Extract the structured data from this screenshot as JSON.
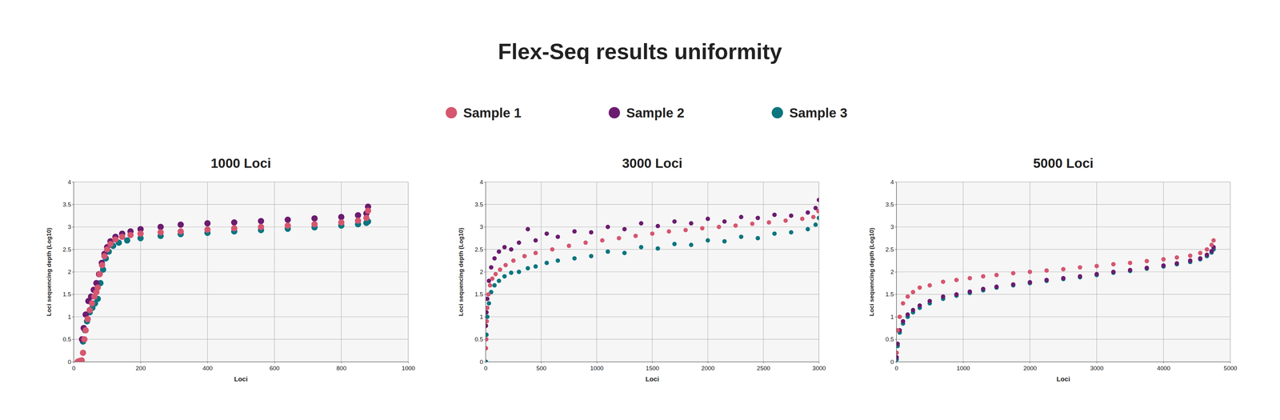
{
  "title": "Flex-Seq results uniformity",
  "chart_data": [
    {
      "type": "scatter",
      "title": "1000 Loci",
      "x_label": "Loci",
      "y_label": "Loci sequencing depth (Log10)",
      "xlim": [
        0,
        1000
      ],
      "ylim": [
        0,
        4
      ],
      "xticks": [
        0,
        200,
        400,
        600,
        800,
        1000
      ],
      "yticks": [
        0,
        0.5,
        1,
        1.5,
        2,
        2.5,
        3,
        3.5,
        4
      ],
      "grid": true,
      "marker": "circle",
      "series": [
        {
          "name": "Sample 1",
          "color": "#d6566f",
          "x": [
            12,
            18,
            24,
            28,
            32,
            36,
            42,
            48,
            55,
            62,
            68,
            72,
            78,
            85,
            92,
            100,
            110,
            125,
            145,
            170,
            200,
            260,
            320,
            400,
            480,
            560,
            640,
            720,
            800,
            850,
            875,
            880
          ],
          "values": [
            0,
            0.02,
            0.03,
            0.2,
            0.5,
            0.7,
            0.95,
            1.15,
            1.3,
            1.45,
            1.55,
            1.65,
            1.95,
            2.15,
            2.35,
            2.5,
            2.62,
            2.72,
            2.78,
            2.82,
            2.85,
            2.88,
            2.9,
            2.94,
            2.97,
            3.0,
            3.03,
            3.06,
            3.1,
            3.14,
            3.2,
            3.36
          ]
        },
        {
          "name": "Sample 2",
          "color": "#6b1c6f",
          "x": [
            25,
            30,
            36,
            44,
            52,
            60,
            68,
            76,
            84,
            92,
            100,
            110,
            125,
            145,
            170,
            200,
            260,
            320,
            400,
            480,
            560,
            640,
            720,
            800,
            850,
            875,
            880
          ],
          "values": [
            0.5,
            0.75,
            1.05,
            1.35,
            1.45,
            1.6,
            1.75,
            1.95,
            2.2,
            2.4,
            2.55,
            2.68,
            2.78,
            2.85,
            2.9,
            2.95,
            3.0,
            3.05,
            3.08,
            3.1,
            3.13,
            3.16,
            3.19,
            3.22,
            3.26,
            3.3,
            3.45
          ]
        },
        {
          "name": "Sample 3",
          "color": "#0b7580",
          "x": [
            28,
            34,
            40,
            48,
            56,
            64,
            72,
            80,
            88,
            96,
            105,
            118,
            135,
            160,
            200,
            260,
            320,
            400,
            480,
            560,
            640,
            720,
            800,
            850,
            875,
            880
          ],
          "values": [
            0.45,
            0.7,
            0.9,
            1.1,
            1.2,
            1.3,
            1.4,
            1.75,
            2.05,
            2.3,
            2.45,
            2.58,
            2.65,
            2.7,
            2.75,
            2.8,
            2.84,
            2.87,
            2.9,
            2.93,
            2.96,
            2.99,
            3.03,
            3.06,
            3.09,
            3.12
          ]
        }
      ]
    },
    {
      "type": "scatter",
      "title": "3000 Loci",
      "x_label": "Loci",
      "y_label": "Loci sequencing depth (Log10)",
      "xlim": [
        0,
        3000
      ],
      "ylim": [
        0,
        4
      ],
      "xticks": [
        0,
        500,
        1000,
        1500,
        2000,
        2500,
        3000
      ],
      "yticks": [
        0,
        0.5,
        1,
        1.5,
        2,
        2.5,
        3,
        3.5,
        4
      ],
      "grid": true,
      "marker": "circle",
      "series": [
        {
          "name": "Sample 1",
          "color": "#d6566f",
          "x": [
            3,
            6,
            10,
            15,
            25,
            40,
            60,
            90,
            130,
            180,
            250,
            350,
            450,
            600,
            750,
            900,
            1050,
            1200,
            1350,
            1500,
            1650,
            1800,
            1950,
            2100,
            2250,
            2400,
            2550,
            2700,
            2850,
            2950,
            2995
          ],
          "values": [
            0.3,
            0.5,
            0.9,
            1.2,
            1.5,
            1.7,
            1.85,
            1.95,
            2.05,
            2.15,
            2.25,
            2.35,
            2.42,
            2.5,
            2.58,
            2.65,
            2.7,
            2.75,
            2.8,
            2.85,
            2.9,
            2.93,
            2.97,
            3.0,
            3.03,
            3.07,
            3.1,
            3.14,
            3.18,
            3.22,
            3.35
          ]
        },
        {
          "name": "Sample 2",
          "color": "#6b1c6f",
          "x": [
            3,
            8,
            15,
            30,
            50,
            80,
            120,
            170,
            230,
            300,
            380,
            450,
            550,
            650,
            800,
            950,
            1100,
            1250,
            1400,
            1550,
            1700,
            1850,
            2000,
            2150,
            2300,
            2450,
            2600,
            2750,
            2900,
            2970,
            3000
          ],
          "values": [
            0.8,
            1.1,
            1.4,
            1.8,
            2.1,
            2.3,
            2.45,
            2.55,
            2.5,
            2.65,
            2.95,
            2.7,
            2.85,
            2.78,
            2.9,
            2.88,
            3.0,
            2.95,
            3.08,
            3.02,
            3.12,
            3.08,
            3.18,
            3.12,
            3.22,
            3.2,
            3.27,
            3.25,
            3.32,
            3.42,
            3.6
          ]
        },
        {
          "name": "Sample 3",
          "color": "#0b7580",
          "x": [
            3,
            8,
            15,
            30,
            50,
            80,
            120,
            170,
            230,
            300,
            380,
            450,
            550,
            650,
            800,
            950,
            1100,
            1250,
            1400,
            1550,
            1700,
            1850,
            2000,
            2150,
            2300,
            2450,
            2600,
            2750,
            2900,
            2970,
            3000
          ],
          "values": [
            0,
            0.6,
            1.0,
            1.3,
            1.55,
            1.7,
            1.8,
            1.9,
            1.98,
            2.0,
            2.08,
            2.12,
            2.2,
            2.25,
            2.3,
            2.35,
            2.45,
            2.42,
            2.55,
            2.52,
            2.62,
            2.6,
            2.7,
            2.68,
            2.78,
            2.75,
            2.85,
            2.88,
            2.95,
            3.05,
            3.2
          ]
        }
      ]
    },
    {
      "type": "scatter",
      "title": "5000 Loci",
      "x_label": "Loci",
      "y_label": "Loci sequencing depth (Log10)",
      "xlim": [
        0,
        5000
      ],
      "ylim": [
        0,
        4
      ],
      "xticks": [
        0,
        1000,
        2000,
        3000,
        4000,
        5000
      ],
      "yticks": [
        0,
        0.5,
        1,
        1.5,
        2,
        2.5,
        3,
        3.5,
        4
      ],
      "grid": true,
      "marker": "circle",
      "series": [
        {
          "name": "Sample 1",
          "color": "#d6566f",
          "x": [
            5,
            20,
            50,
            100,
            170,
            250,
            350,
            500,
            700,
            900,
            1100,
            1300,
            1500,
            1750,
            2000,
            2250,
            2500,
            2750,
            3000,
            3250,
            3500,
            3750,
            4000,
            4200,
            4400,
            4550,
            4650,
            4720,
            4750
          ],
          "values": [
            0.2,
            0.7,
            1.0,
            1.3,
            1.45,
            1.55,
            1.65,
            1.7,
            1.78,
            1.82,
            1.86,
            1.9,
            1.93,
            1.97,
            2.0,
            2.03,
            2.06,
            2.1,
            2.13,
            2.17,
            2.2,
            2.24,
            2.28,
            2.32,
            2.36,
            2.42,
            2.5,
            2.6,
            2.7
          ]
        },
        {
          "name": "Sample 2",
          "color": "#6b1c6f",
          "x": [
            5,
            20,
            50,
            100,
            170,
            250,
            350,
            500,
            700,
            900,
            1100,
            1300,
            1500,
            1750,
            2000,
            2250,
            2500,
            2750,
            3000,
            3250,
            3500,
            3750,
            4000,
            4200,
            4400,
            4550,
            4650,
            4720,
            4750
          ],
          "values": [
            0.1,
            0.4,
            0.7,
            0.9,
            1.05,
            1.15,
            1.25,
            1.35,
            1.45,
            1.5,
            1.56,
            1.62,
            1.67,
            1.72,
            1.77,
            1.82,
            1.86,
            1.9,
            1.95,
            2.0,
            2.04,
            2.09,
            2.14,
            2.19,
            2.25,
            2.3,
            2.38,
            2.46,
            2.55
          ]
        },
        {
          "name": "Sample 3",
          "color": "#0b7580",
          "x": [
            5,
            20,
            50,
            100,
            170,
            250,
            350,
            500,
            700,
            900,
            1100,
            1300,
            1500,
            1750,
            2000,
            2250,
            2500,
            2750,
            3000,
            3250,
            3500,
            3750,
            4000,
            4200,
            4400,
            4550,
            4650,
            4720,
            4750
          ],
          "values": [
            0.05,
            0.35,
            0.65,
            0.85,
            1.0,
            1.1,
            1.2,
            1.3,
            1.4,
            1.47,
            1.53,
            1.59,
            1.65,
            1.7,
            1.75,
            1.8,
            1.84,
            1.88,
            1.93,
            1.98,
            2.02,
            2.07,
            2.12,
            2.17,
            2.22,
            2.28,
            2.35,
            2.43,
            2.5
          ]
        }
      ]
    }
  ]
}
